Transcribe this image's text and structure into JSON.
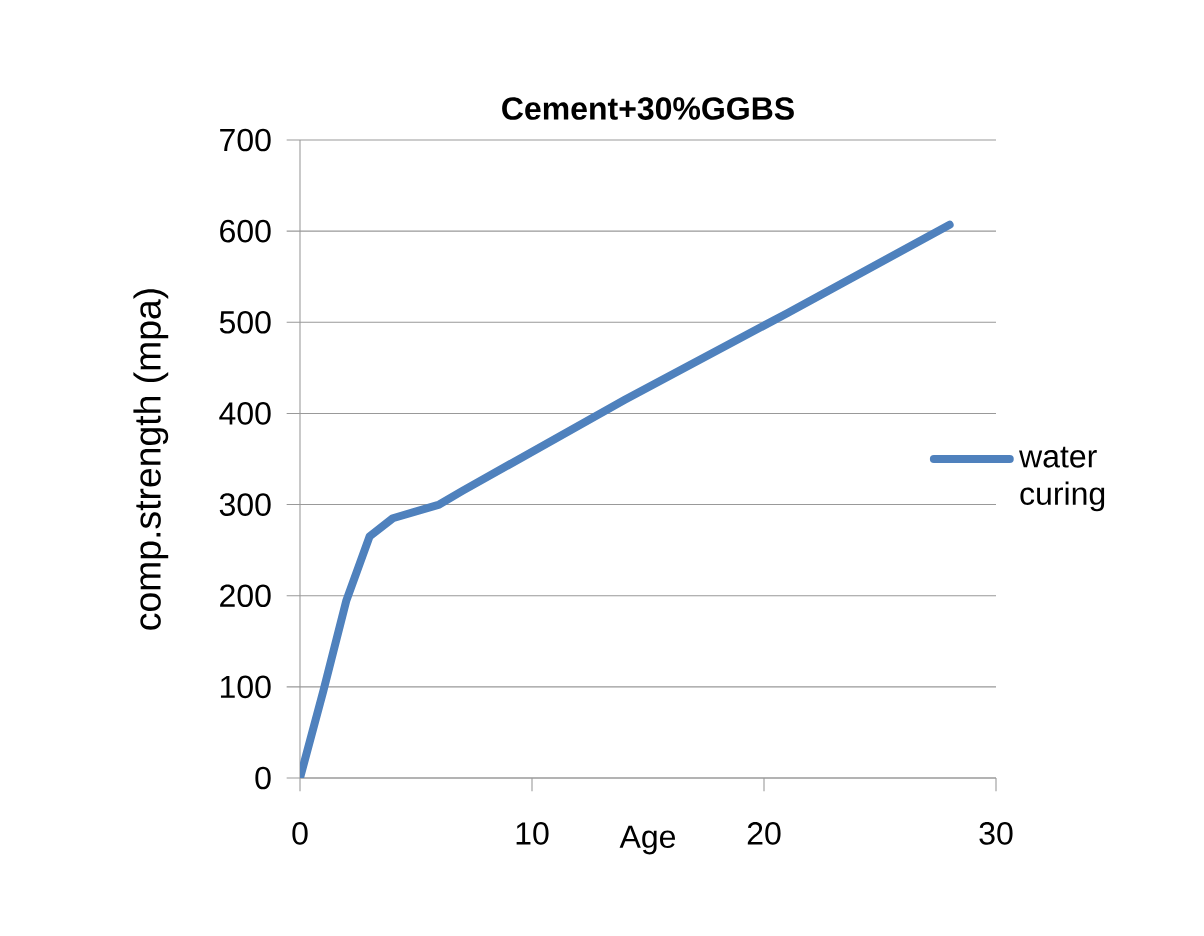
{
  "chart_data": {
    "type": "line",
    "title": "Cement+30%GGBS",
    "xlabel": "Age",
    "ylabel": "comp.strength (mpa)",
    "x": [
      0,
      1,
      2,
      3,
      4,
      6,
      7,
      14,
      21,
      28
    ],
    "series": [
      {
        "name": "water curing",
        "color": "#4f81bd",
        "values": [
          0,
          95,
          195,
          265,
          285,
          300,
          315,
          415,
          510,
          607
        ]
      }
    ],
    "xlim": [
      0,
      30
    ],
    "xticks": [
      0,
      10,
      20,
      30
    ],
    "ylim": [
      0,
      700
    ],
    "yticks": [
      0,
      100,
      200,
      300,
      400,
      500,
      600,
      700
    ],
    "grid": "y",
    "legend": "right",
    "marker": "none",
    "line_style": "solid"
  }
}
